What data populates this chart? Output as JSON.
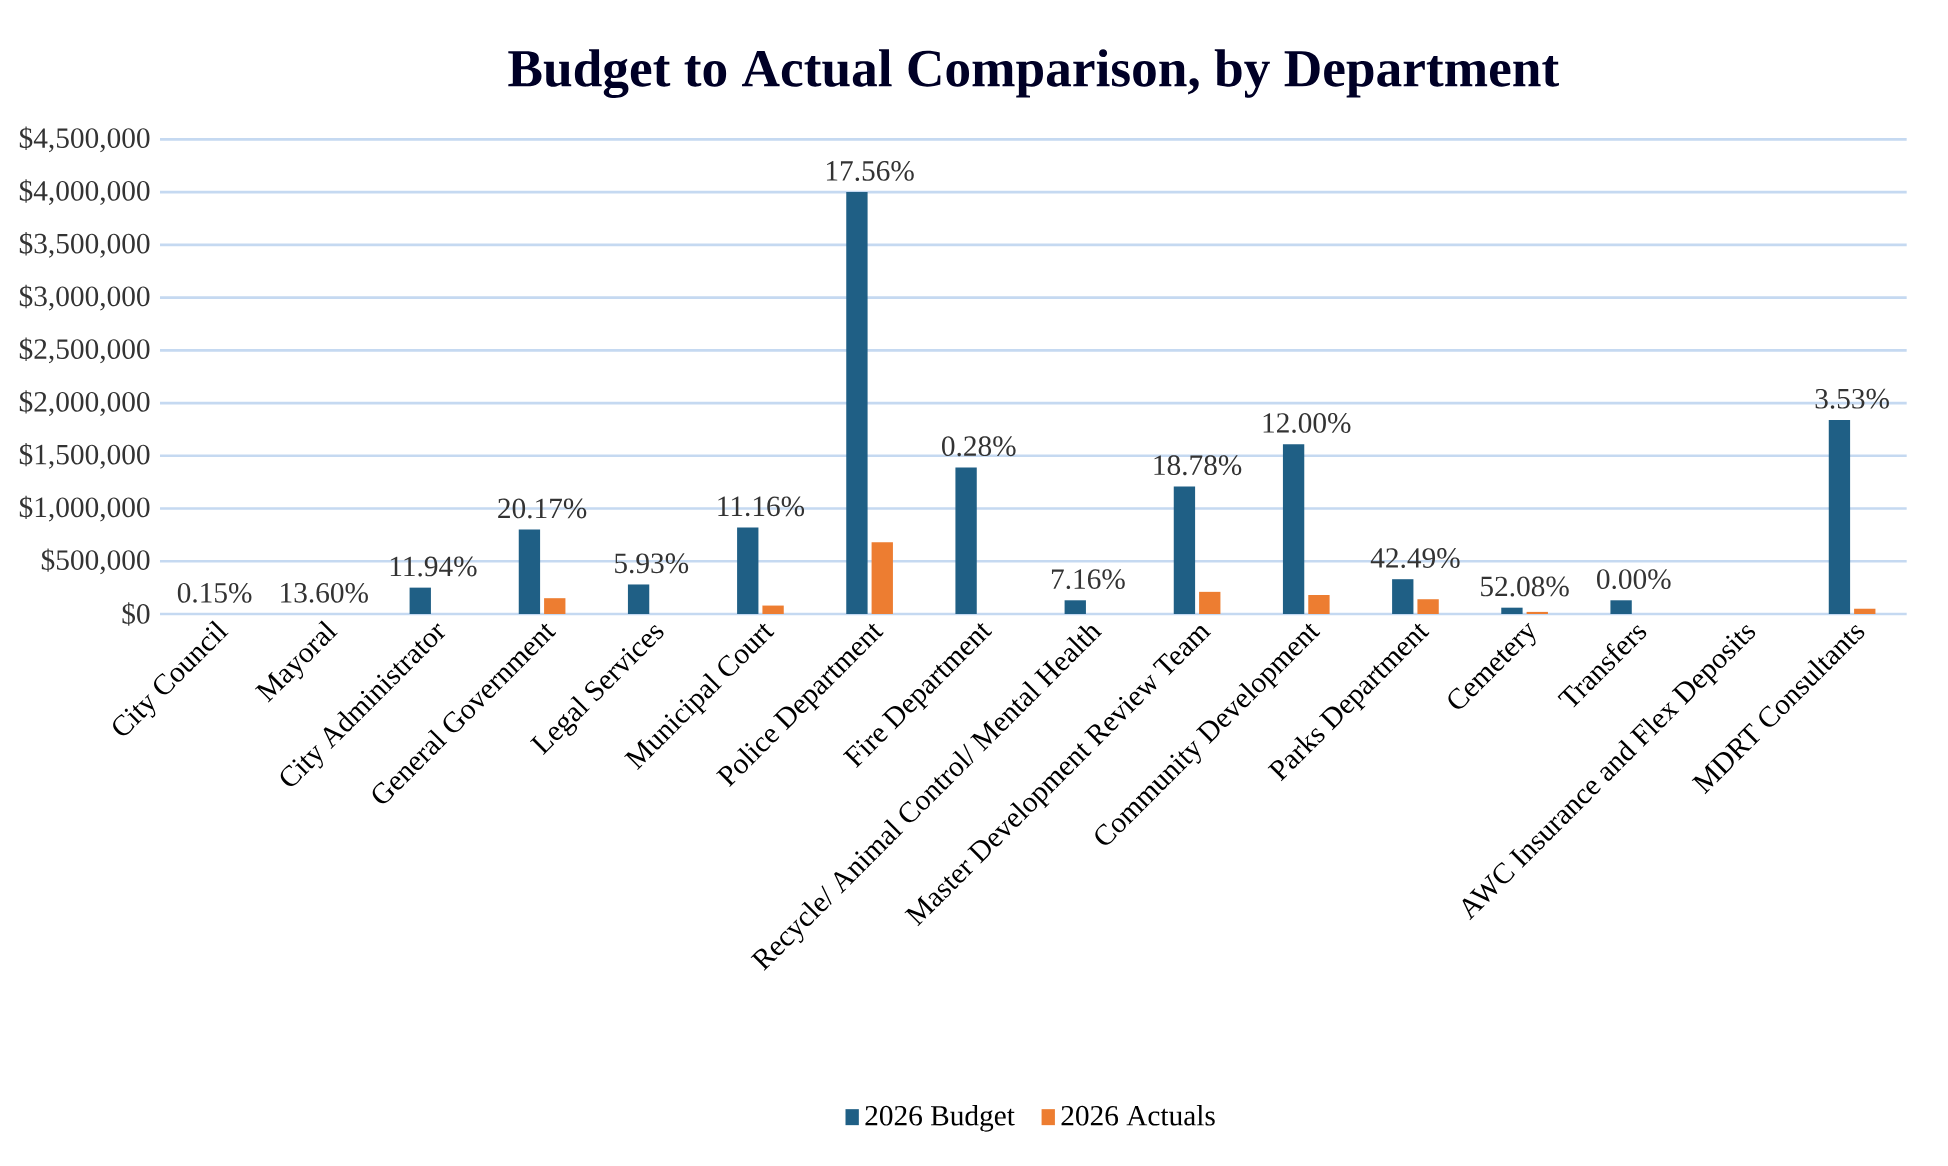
{
  "chart_data": {
    "type": "bar",
    "title": "Budget to Actual Comparison, by Department",
    "categories": [
      "City Council",
      "Mayoral",
      "City Administrator",
      "General Government",
      "Legal Services",
      "Municipal Court",
      "Police Department",
      "Fire Department",
      "Recycle/ Animal Control/ Mental Health",
      "Master Development Review Team",
      "Community Development",
      "Parks Department",
      "Cemetery",
      "Transfers",
      "AWC Insurance and Flex Deposits",
      "MDRT Consultants"
    ],
    "series": [
      {
        "name": "2026 Budget",
        "color": "#1f5f85",
        "values": [
          0,
          0,
          250000,
          800000,
          280000,
          820000,
          4000000,
          1390000,
          130000,
          1210000,
          1610000,
          330000,
          60000,
          130000,
          0,
          1840000
        ]
      },
      {
        "name": "2026 Actuals",
        "color": "#ed7d31",
        "values": [
          0,
          0,
          0,
          150000,
          0,
          80000,
          680000,
          0,
          0,
          210000,
          180000,
          140000,
          20000,
          0,
          0,
          50000
        ]
      }
    ],
    "ylim": [
      0,
      4500000
    ],
    "yticks": [
      {
        "value": 0,
        "label": "$0"
      },
      {
        "value": 500000,
        "label": "$500,000"
      },
      {
        "value": 1000000,
        "label": "$1,000,000"
      },
      {
        "value": 1500000,
        "label": "$1,500,000"
      },
      {
        "value": 2000000,
        "label": "$2,000,000"
      },
      {
        "value": 2500000,
        "label": "$2,500,000"
      },
      {
        "value": 3000000,
        "label": "$3,000,000"
      },
      {
        "value": 3500000,
        "label": "$3,500,000"
      },
      {
        "value": 4000000,
        "label": "$4,000,000"
      },
      {
        "value": 4500000,
        "label": "$4,500,000"
      }
    ],
    "grid": "y",
    "legend": "bottom",
    "annotations": [
      {
        "text": "0.15%",
        "x": "City Council",
        "y": 0
      },
      {
        "text": "13.60%",
        "x": "Mayoral",
        "y": 0
      },
      {
        "text": "11.94%",
        "x": "City Administrator",
        "y": 250000
      },
      {
        "text": "20.17%",
        "x": "General Government",
        "y": 800000
      },
      {
        "text": "5.93%",
        "x": "Legal Services",
        "y": 280000
      },
      {
        "text": "11.16%",
        "x": "Municipal Court",
        "y": 820000
      },
      {
        "text": "17.56%",
        "x": "Police Department",
        "y": 4000000
      },
      {
        "text": "0.28%",
        "x": "Fire Department",
        "y": 1390000
      },
      {
        "text": "7.16%",
        "x": "Recycle/ Animal Control/ Mental Health",
        "y": 130000
      },
      {
        "text": "18.78%",
        "x": "Master Development Review Team",
        "y": 1210000
      },
      {
        "text": "12.00%",
        "x": "Community Development",
        "y": 1610000
      },
      {
        "text": "42.49%",
        "x": "Parks Department",
        "y": 330000
      },
      {
        "text": "52.08%",
        "x": "Cemetery",
        "y": 60000
      },
      {
        "text": "0.00%",
        "x": "Transfers",
        "y": 130000
      },
      {
        "text": "3.53%",
        "x": "MDRT Consultants",
        "y": 1840000
      }
    ]
  }
}
